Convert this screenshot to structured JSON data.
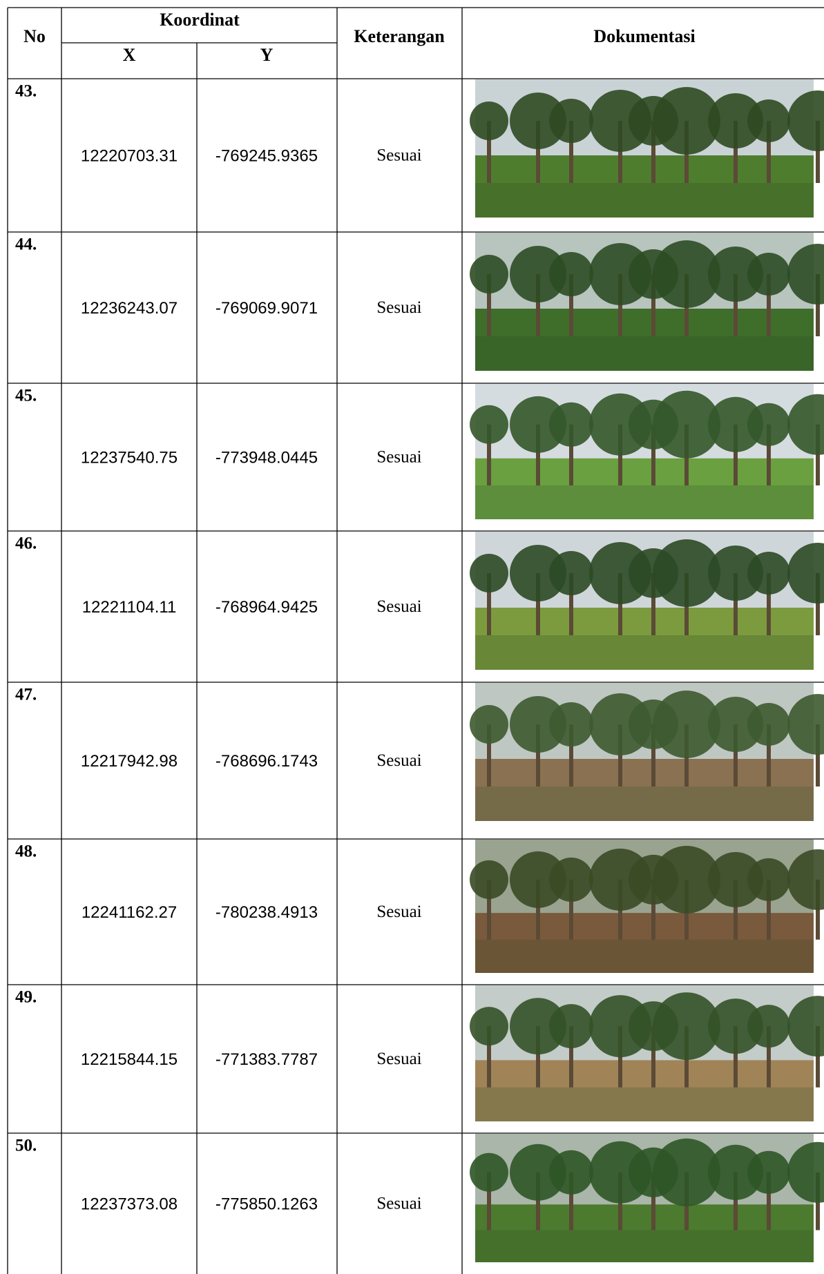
{
  "header": {
    "no": "No",
    "koordinat": "Koordinat",
    "x": "X",
    "y": "Y",
    "keterangan": "Keterangan",
    "dokumentasi": "Dokumentasi"
  },
  "table": {
    "rows": [
      [
        "43.",
        "12220703.31",
        "-769245.9365",
        "Sesuai"
      ],
      [
        "44.",
        "12236243.07",
        "-769069.9071",
        "Sesuai"
      ],
      [
        "45.",
        "12237540.75",
        "-773948.0445",
        "Sesuai"
      ],
      [
        "46.",
        "12221104.11",
        "-768964.9425",
        "Sesuai"
      ],
      [
        "47.",
        "12217942.98",
        "-768696.1743",
        "Sesuai"
      ],
      [
        "48.",
        "12241162.27",
        "-780238.4913",
        "Sesuai"
      ],
      [
        "49.",
        "12215844.15",
        "-771383.7787",
        "Sesuai"
      ],
      [
        "50.",
        "12237373.08",
        "-775850.1263",
        "Sesuai"
      ]
    ]
  }
}
